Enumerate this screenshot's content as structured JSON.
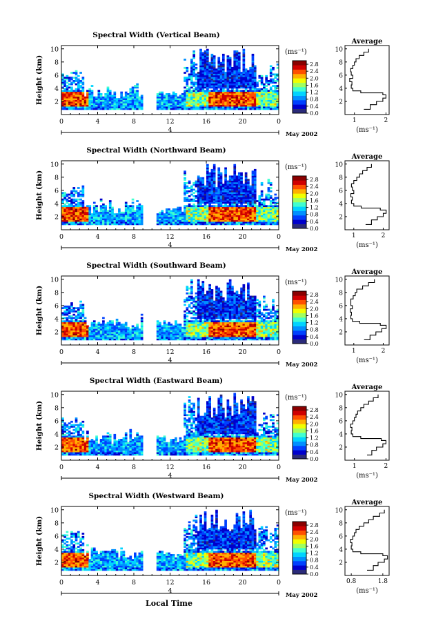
{
  "figure": {
    "xlabel_bottom": "Local Time"
  },
  "colorbar": {
    "unit": "(ms⁻¹)",
    "ticks": [
      "2.8",
      "2.4",
      "2.0",
      "1.6",
      "1.2",
      "0.8",
      "0.4",
      "0.0"
    ],
    "range": [
      0.0,
      3.0
    ],
    "colors": [
      "#2b2b7a",
      "#0000cc",
      "#0040ff",
      "#0090ff",
      "#00d4ff",
      "#40ffd0",
      "#a0ff60",
      "#f0ff00",
      "#ffb000",
      "#ff5000",
      "#d00000",
      "#8b0000"
    ]
  },
  "date_label": "May 2002",
  "chart_data": [
    {
      "type": "heatmap",
      "title": "Spectral Width (Vertical Beam)",
      "ylabel": "Height (km)",
      "x_ticks": [
        "0",
        "4",
        "8",
        "12",
        "16",
        "20",
        "0"
      ],
      "y_ticks": [
        "2",
        "4",
        "6",
        "8",
        "10"
      ],
      "secondary_x_label": "4",
      "profile": {
        "title": "Average",
        "xlabel": "(ms⁻¹)",
        "x_ticks": [
          "1",
          "2"
        ],
        "xlim": [
          0.7,
          2.1
        ],
        "y_ticks": [
          "2",
          "4",
          "6",
          "8",
          "10"
        ],
        "heights": [
          0.8,
          1.5,
          2.0,
          2.5,
          3.0,
          3.3,
          3.6,
          4.0,
          4.5,
          5.0,
          5.5,
          6.0,
          6.5,
          7.0,
          7.5,
          8.0,
          8.5,
          9.0,
          9.5,
          10.0
        ],
        "values": [
          1.3,
          1.5,
          1.7,
          1.9,
          2.0,
          1.9,
          1.2,
          0.95,
          0.9,
          0.92,
          0.85,
          0.95,
          0.9,
          0.88,
          0.95,
          1.0,
          1.05,
          1.15,
          1.3,
          1.45
        ]
      }
    },
    {
      "type": "heatmap",
      "title": "Spectral Width (Northward Beam)",
      "ylabel": "Height (km)",
      "x_ticks": [
        "0",
        "4",
        "8",
        "12",
        "16",
        "20",
        "0"
      ],
      "y_ticks": [
        "2",
        "4",
        "6",
        "8",
        "10"
      ],
      "secondary_x_label": "4",
      "profile": {
        "title": "Average",
        "xlabel": "(ms⁻¹)",
        "x_ticks": [
          "1",
          "2"
        ],
        "xlim": [
          0.7,
          2.2
        ],
        "y_ticks": [
          "2",
          "4",
          "6",
          "8",
          "10"
        ],
        "heights": [
          0.8,
          1.5,
          2.0,
          2.5,
          3.0,
          3.3,
          3.6,
          4.0,
          4.5,
          5.0,
          5.5,
          6.0,
          6.5,
          7.0,
          7.5,
          8.0,
          8.5,
          9.0,
          9.5,
          10.0
        ],
        "values": [
          1.4,
          1.6,
          1.8,
          2.0,
          2.1,
          1.9,
          1.25,
          1.0,
          0.92,
          0.95,
          0.9,
          1.0,
          0.95,
          0.92,
          1.0,
          1.1,
          1.2,
          1.3,
          1.45,
          1.6
        ]
      }
    },
    {
      "type": "heatmap",
      "title": "Spectral Width (Southward Beam)",
      "ylabel": "Height (km)",
      "x_ticks": [
        "0",
        "4",
        "8",
        "12",
        "16",
        "20",
        "0"
      ],
      "y_ticks": [
        "2",
        "4",
        "6",
        "8",
        "10"
      ],
      "secondary_x_label": "4",
      "profile": {
        "title": "Average",
        "xlabel": "(ms⁻¹)",
        "x_ticks": [
          "1",
          "2"
        ],
        "xlim": [
          0.7,
          2.2
        ],
        "y_ticks": [
          "2",
          "4",
          "6",
          "8",
          "10"
        ],
        "heights": [
          0.8,
          1.5,
          2.0,
          2.5,
          3.0,
          3.3,
          3.6,
          4.0,
          4.5,
          5.0,
          5.5,
          6.0,
          6.5,
          7.0,
          7.5,
          8.0,
          8.5,
          9.0,
          9.5,
          10.0
        ],
        "values": [
          1.35,
          1.55,
          1.75,
          1.95,
          2.1,
          1.9,
          1.2,
          0.95,
          0.9,
          0.92,
          0.88,
          0.95,
          0.9,
          0.9,
          0.98,
          1.05,
          1.1,
          1.3,
          1.5,
          1.7
        ]
      }
    },
    {
      "type": "heatmap",
      "title": "Spectral Width (Eastward Beam)",
      "ylabel": "Height (km)",
      "x_ticks": [
        "0",
        "4",
        "8",
        "12",
        "16",
        "20",
        "0"
      ],
      "y_ticks": [
        "2",
        "4",
        "6",
        "8",
        "10"
      ],
      "secondary_x_label": "4",
      "profile": {
        "title": "Average",
        "xlabel": "(ms⁻¹)",
        "x_ticks": [
          "1",
          "2"
        ],
        "xlim": [
          0.7,
          2.1
        ],
        "y_ticks": [
          "2",
          "4",
          "6",
          "8",
          "10"
        ],
        "heights": [
          0.8,
          1.5,
          2.0,
          2.5,
          3.0,
          3.3,
          3.6,
          4.0,
          4.5,
          5.0,
          5.5,
          6.0,
          6.5,
          7.0,
          7.5,
          8.0,
          8.5,
          9.0,
          9.5,
          10.0
        ],
        "values": [
          1.4,
          1.55,
          1.7,
          1.9,
          2.0,
          1.85,
          1.2,
          0.95,
          0.9,
          0.92,
          0.88,
          0.95,
          1.0,
          1.05,
          1.1,
          1.2,
          1.3,
          1.45,
          1.6,
          1.75
        ]
      }
    },
    {
      "type": "heatmap",
      "title": "Spectral Width (Westward Beam)",
      "ylabel": "Height (km)",
      "x_ticks": [
        "0",
        "4",
        "8",
        "12",
        "16",
        "20",
        "0"
      ],
      "y_ticks": [
        "2",
        "4",
        "6",
        "8",
        "10"
      ],
      "secondary_x_label": "4",
      "profile": {
        "title": "Average",
        "xlabel": "(ms⁻¹)",
        "x_ticks": [
          "0.8",
          "1.8"
        ],
        "xlim": [
          0.6,
          2.0
        ],
        "y_ticks": [
          "2",
          "4",
          "6",
          "8",
          "10"
        ],
        "heights": [
          0.8,
          1.5,
          2.0,
          2.5,
          3.0,
          3.3,
          3.6,
          4.0,
          4.5,
          5.0,
          5.5,
          6.0,
          6.5,
          7.0,
          7.5,
          8.0,
          8.5,
          9.0,
          9.5,
          10.0
        ],
        "values": [
          1.3,
          1.5,
          1.65,
          1.85,
          1.95,
          1.8,
          1.1,
          0.85,
          0.8,
          0.82,
          0.78,
          0.85,
          0.9,
          0.95,
          1.05,
          1.2,
          1.35,
          1.5,
          1.7,
          1.85
        ]
      }
    }
  ]
}
